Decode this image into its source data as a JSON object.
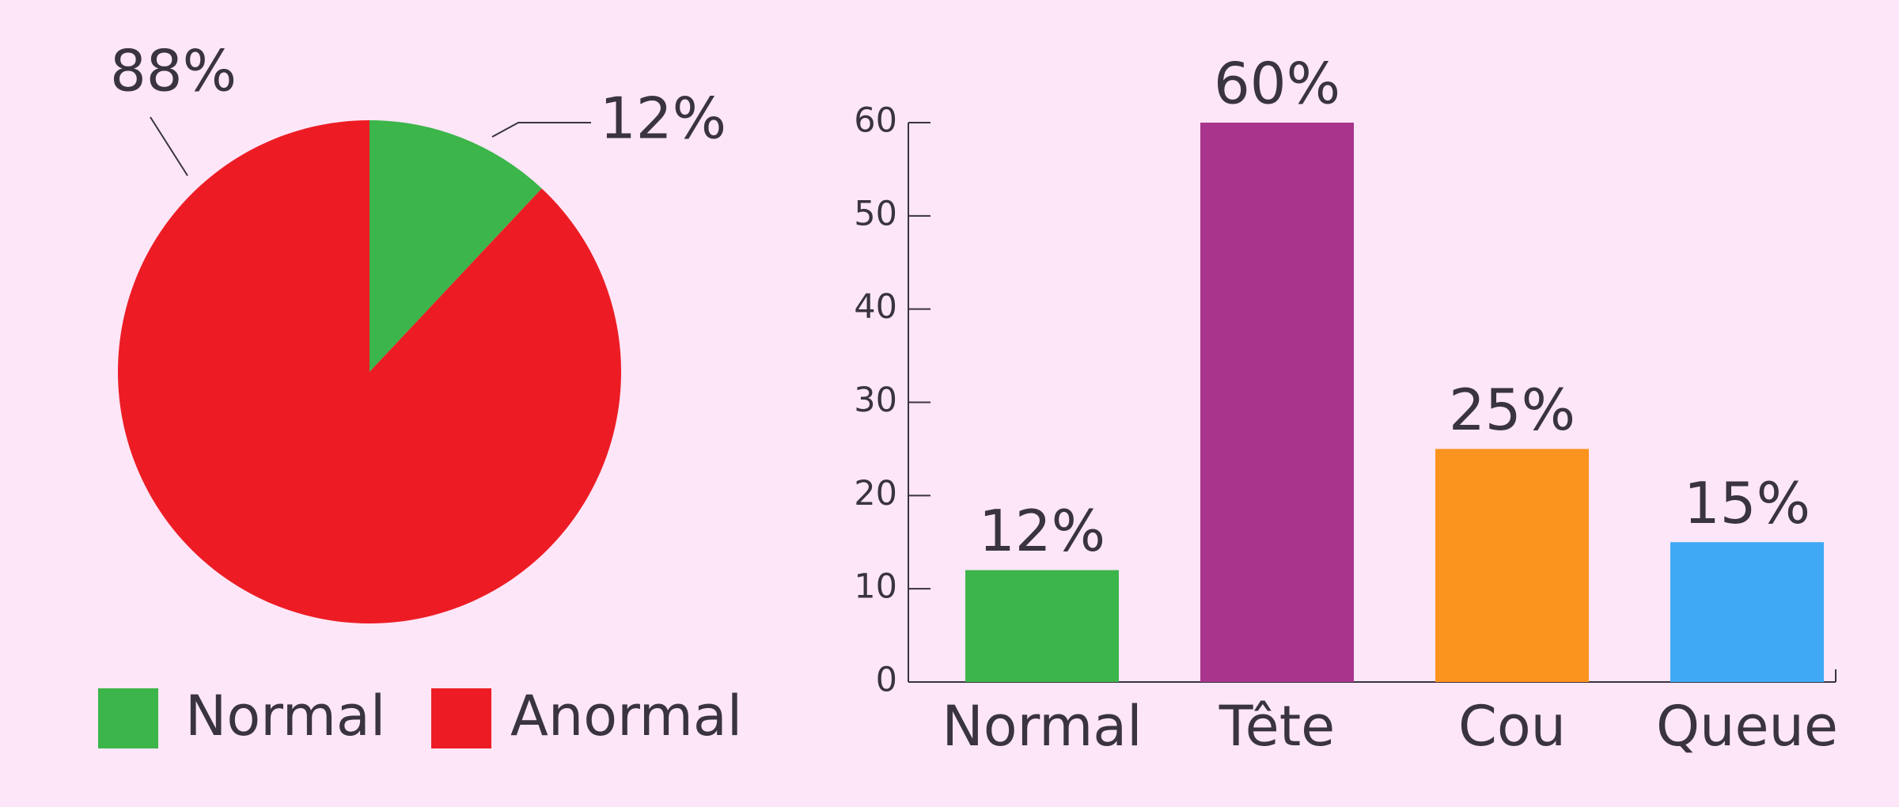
{
  "chart_data": [
    {
      "type": "pie",
      "categories": [
        "Normal",
        "Anormal"
      ],
      "values": [
        12,
        88
      ],
      "value_labels": [
        "12%",
        "88%"
      ],
      "colors": [
        "#3cb54a",
        "#ed1c24"
      ]
    },
    {
      "type": "bar",
      "categories": [
        "Normal",
        "Tête",
        "Cou",
        "Queue"
      ],
      "values": [
        12,
        60,
        25,
        15
      ],
      "value_labels": [
        "12%",
        "60%",
        "25%",
        "15%"
      ],
      "colors": [
        "#3cb54a",
        "#a8358b",
        "#fb931f",
        "#3fa9f5"
      ],
      "ylim": [
        0,
        60
      ],
      "yticks": [
        0,
        10,
        20,
        30,
        40,
        50,
        60
      ]
    }
  ]
}
